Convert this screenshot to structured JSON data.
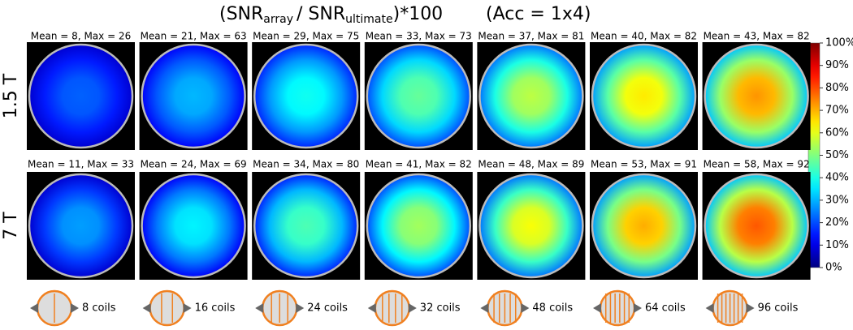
{
  "title": {
    "open": "(SNR",
    "sub1": "array",
    "mid": "/ SNR",
    "sub2": "ultimate",
    "close": ")*100",
    "acc": "(Acc = 1x4)"
  },
  "rows": [
    {
      "label": "1.5 T",
      "panels": [
        "Mean = 8, Max = 26",
        "Mean = 21, Max = 63",
        "Mean = 29, Max = 75",
        "Mean = 33, Max = 73",
        "Mean = 37, Max = 81",
        "Mean = 40, Max = 82",
        "Mean = 43, Max = 82"
      ]
    },
    {
      "label": "7 T",
      "panels": [
        "Mean = 11, Max = 33",
        "Mean = 24, Max = 69",
        "Mean = 34, Max = 80",
        "Mean = 41, Max = 82",
        "Mean = 48, Max = 89",
        "Mean = 53, Max = 91",
        "Mean = 58, Max = 92"
      ]
    }
  ],
  "colorbar": {
    "ticks": [
      {
        "value": 100,
        "label": "100%"
      },
      {
        "value": 90,
        "label": "90%"
      },
      {
        "value": 80,
        "label": "80%"
      },
      {
        "value": 70,
        "label": "70%"
      },
      {
        "value": 60,
        "label": "60%"
      },
      {
        "value": 50,
        "label": "50%"
      },
      {
        "value": 40,
        "label": "40%"
      },
      {
        "value": 30,
        "label": "30%"
      },
      {
        "value": 20,
        "label": "20%"
      },
      {
        "value": 10,
        "label": "10%"
      },
      {
        "value": 0,
        "label": "0%"
      }
    ]
  },
  "coils": [
    "8 coils",
    "16 coils",
    "24 coils",
    "32 coils",
    "48 coils",
    "64 coils",
    "96 coils"
  ]
}
